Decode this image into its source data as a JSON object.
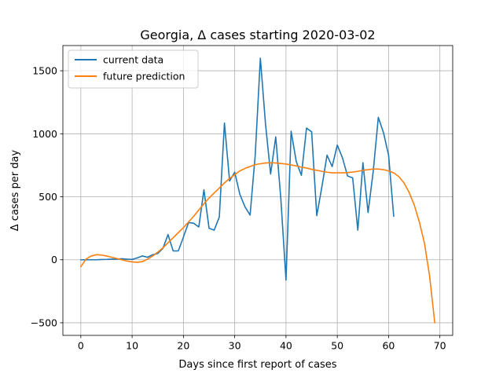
{
  "chart_data": {
    "type": "line",
    "title": "Georgia, Δ cases starting 2020-03-02",
    "xlabel": "Days since first report of cases",
    "ylabel": "Δ cases per day",
    "xlim": [
      -3.5,
      72.5
    ],
    "ylim": [
      -600,
      1700
    ],
    "xticks": [
      0,
      10,
      20,
      30,
      40,
      50,
      60,
      70
    ],
    "yticks": [
      -500,
      0,
      500,
      1000,
      1500
    ],
    "xtick_labels": [
      "0",
      "10",
      "20",
      "30",
      "40",
      "50",
      "60",
      "70"
    ],
    "ytick_labels": [
      "−500",
      "0",
      "500",
      "1000",
      "1500"
    ],
    "grid": true,
    "legend_position": "top-left",
    "series": [
      {
        "name": "current data",
        "color": "#1f77b4",
        "x": [
          0,
          1,
          2,
          3,
          4,
          5,
          6,
          7,
          8,
          9,
          10,
          11,
          12,
          13,
          14,
          15,
          16,
          17,
          18,
          19,
          20,
          21,
          22,
          23,
          24,
          25,
          26,
          27,
          28,
          29,
          30,
          31,
          32,
          33,
          34,
          35,
          36,
          37,
          38,
          39,
          40,
          41,
          42,
          43,
          44,
          45,
          46,
          47,
          48,
          49,
          50,
          51,
          52,
          53,
          54,
          55,
          56,
          57,
          58,
          59,
          60,
          61
        ],
        "y": [
          0,
          0,
          0,
          0,
          2,
          3,
          5,
          5,
          8,
          5,
          3,
          15,
          30,
          20,
          40,
          50,
          90,
          200,
          70,
          70,
          180,
          295,
          290,
          260,
          555,
          250,
          235,
          340,
          1085,
          625,
          695,
          520,
          420,
          355,
          830,
          1600,
          1080,
          680,
          975,
          480,
          -160,
          1020,
          780,
          670,
          1045,
          1015,
          350,
          580,
          830,
          740,
          910,
          810,
          665,
          650,
          235,
          770,
          375,
          700,
          1130,
          1010,
          830,
          345
        ]
      },
      {
        "name": "future prediction",
        "color": "#ff7f0e",
        "x": [
          0,
          1,
          2,
          3,
          4,
          5,
          6,
          7,
          8,
          9,
          10,
          11,
          12,
          13,
          14,
          15,
          16,
          17,
          18,
          19,
          20,
          21,
          22,
          23,
          24,
          25,
          26,
          27,
          28,
          29,
          30,
          31,
          32,
          33,
          34,
          35,
          36,
          37,
          38,
          39,
          40,
          41,
          42,
          43,
          44,
          45,
          46,
          47,
          48,
          49,
          50,
          51,
          52,
          53,
          54,
          55,
          56,
          57,
          58,
          59,
          60,
          61,
          62,
          63,
          64,
          65,
          66,
          67,
          68,
          69
        ],
        "y": [
          -55,
          5,
          30,
          40,
          38,
          30,
          20,
          10,
          0,
          -10,
          -17,
          -20,
          -15,
          5,
          30,
          60,
          95,
          135,
          175,
          215,
          255,
          300,
          345,
          395,
          445,
          490,
          530,
          570,
          610,
          645,
          675,
          705,
          725,
          740,
          755,
          762,
          768,
          770,
          768,
          764,
          760,
          752,
          745,
          735,
          728,
          718,
          710,
          702,
          695,
          690,
          690,
          690,
          692,
          696,
          702,
          710,
          715,
          720,
          720,
          715,
          705,
          690,
          660,
          610,
          535,
          435,
          300,
          130,
          -130,
          -500
        ]
      }
    ]
  }
}
